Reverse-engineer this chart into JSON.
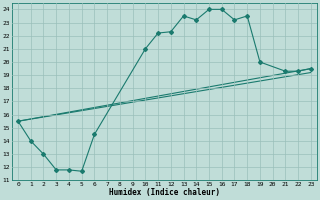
{
  "title": "",
  "xlabel": "Humidex (Indice chaleur)",
  "xlim": [
    -0.5,
    23.5
  ],
  "ylim": [
    11,
    24.5
  ],
  "yticks": [
    11,
    12,
    13,
    14,
    15,
    16,
    17,
    18,
    19,
    20,
    21,
    22,
    23,
    24
  ],
  "xticks": [
    0,
    1,
    2,
    3,
    4,
    5,
    6,
    7,
    8,
    9,
    10,
    11,
    12,
    13,
    14,
    15,
    16,
    17,
    18,
    19,
    20,
    21,
    22,
    23
  ],
  "line_color": "#1a7a6e",
  "bg_color": "#c0ddd8",
  "grid_color": "#9abfba",
  "line1_x": [
    0,
    1,
    2,
    3,
    4,
    5,
    6,
    10,
    11,
    12,
    13,
    14,
    15,
    16,
    17,
    18,
    19,
    21,
    22,
    23
  ],
  "line1_y": [
    15.5,
    14.0,
    13.0,
    11.8,
    11.8,
    11.7,
    14.5,
    21.0,
    22.2,
    22.3,
    23.5,
    23.2,
    24.0,
    24.0,
    23.2,
    23.5,
    20.0,
    19.3,
    19.3,
    19.5
  ],
  "line2_x": [
    0,
    23
  ],
  "line2_y": [
    15.5,
    19.5
  ],
  "line3_x": [
    0,
    23
  ],
  "line3_y": [
    15.5,
    19.2
  ],
  "marker": "D",
  "markersize": 2.0,
  "linewidth": 0.8
}
